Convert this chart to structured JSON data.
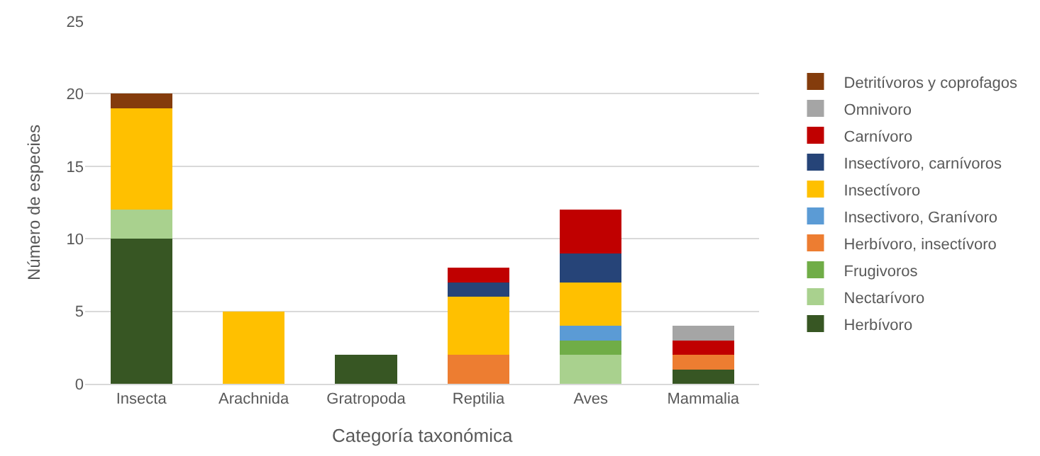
{
  "chart_data": {
    "type": "bar",
    "stacked": true,
    "xlabel": "Categoría taxonómica",
    "ylabel": "Número de especies",
    "categories": [
      "Insecta",
      "Arachnida",
      "Gratropoda",
      "Reptilia",
      "Aves",
      "Mammalia"
    ],
    "series": [
      {
        "name": "Herbívoro",
        "color": "#375623",
        "values": [
          10,
          0,
          2,
          0,
          0,
          1
        ]
      },
      {
        "name": "Nectarívoro",
        "color": "#a9d18e",
        "values": [
          2,
          0,
          0,
          0,
          2,
          0
        ]
      },
      {
        "name": "Frugivoros",
        "color": "#70ad47",
        "values": [
          0,
          0,
          0,
          0,
          1,
          0
        ]
      },
      {
        "name": "Herbívoro, insectívoro",
        "color": "#ed7d31",
        "values": [
          0,
          0,
          0,
          2,
          0,
          1
        ]
      },
      {
        "name": "Insectivoro, Granívoro",
        "color": "#5b9bd5",
        "values": [
          0,
          0,
          0,
          0,
          1,
          0
        ]
      },
      {
        "name": "Insectívoro",
        "color": "#ffc000",
        "values": [
          7,
          5,
          0,
          4,
          3,
          0
        ]
      },
      {
        "name": "Insectívoro, carnívoros",
        "color": "#264478",
        "values": [
          0,
          0,
          0,
          1,
          2,
          0
        ]
      },
      {
        "name": "Carnívoro",
        "color": "#c00000",
        "values": [
          0,
          0,
          0,
          1,
          3,
          1
        ]
      },
      {
        "name": "Omnivoro",
        "color": "#a5a5a5",
        "values": [
          0,
          0,
          0,
          0,
          0,
          1
        ]
      },
      {
        "name": "Detritívoros y coprofagos",
        "color": "#843c0c",
        "values": [
          1,
          0,
          0,
          0,
          0,
          0
        ]
      }
    ],
    "ylim": [
      0,
      25
    ],
    "yticks": [
      0,
      5,
      10,
      15,
      20,
      25
    ],
    "grid": "y",
    "legend": "right"
  }
}
